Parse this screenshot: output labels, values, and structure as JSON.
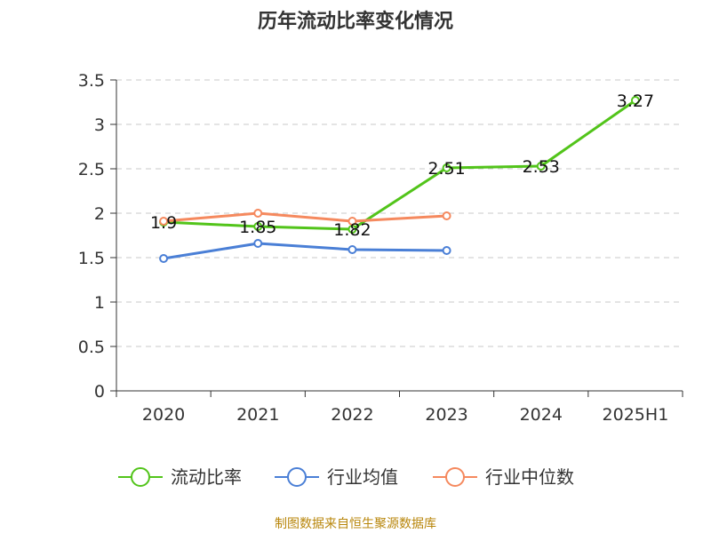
{
  "chart_data": {
    "type": "line",
    "title": "历年流动比率变化情况",
    "categories": [
      "2020",
      "2021",
      "2022",
      "2023",
      "2024",
      "2025H1"
    ],
    "ylim": [
      0,
      3.5
    ],
    "yticks": [
      "0",
      "0.5",
      "1",
      "1.5",
      "2",
      "2.5",
      "3",
      "3.5"
    ],
    "grid": true,
    "legend_position": "bottom",
    "series": [
      {
        "name": "流动比率",
        "color": "#52c41a",
        "values": [
          1.9,
          1.85,
          1.82,
          2.51,
          2.53,
          3.27
        ],
        "labels": [
          "1.9",
          "1.85",
          "1.82",
          "2.51",
          "2.53",
          "3.27"
        ]
      },
      {
        "name": "行业均值",
        "color": "#4a7fd6",
        "values": [
          1.49,
          1.66,
          1.59,
          1.58,
          null,
          null
        ]
      },
      {
        "name": "行业中位数",
        "color": "#f5895e",
        "values": [
          1.91,
          2.0,
          1.91,
          1.97,
          null,
          null
        ]
      }
    ]
  },
  "source": "制图数据来自恒生聚源数据库"
}
